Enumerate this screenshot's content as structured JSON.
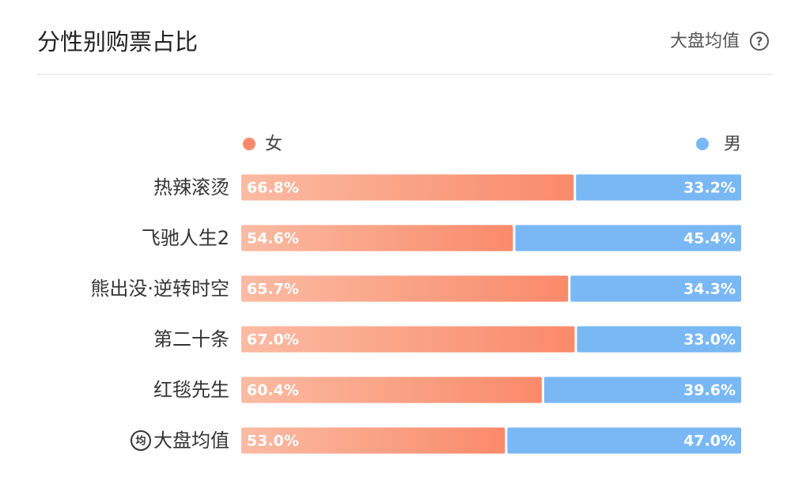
{
  "chart_data": {
    "type": "stacked_barh",
    "title": "分性别购票占比",
    "benchmark_label": "大盘均值",
    "benchmark_badge": "均",
    "categories": [
      "热辣滚烫",
      "飞驰人生2",
      "熊出没·逆转时空",
      "第二十条",
      "红毯先生",
      "大盘均值"
    ],
    "series": [
      {
        "name": "女",
        "color": "#fa8a6a",
        "values": [
          66.8,
          54.6,
          65.7,
          67.0,
          60.4,
          53.0
        ],
        "value_labels": [
          "66.8%",
          "54.6%",
          "65.7%",
          "67.0%",
          "60.4%",
          "53.0%"
        ]
      },
      {
        "name": "男",
        "color": "#7ab8f5",
        "values": [
          33.2,
          45.4,
          34.3,
          33.0,
          39.6,
          47.0
        ],
        "value_labels": [
          "33.2%",
          "45.4%",
          "34.3%",
          "33.0%",
          "39.6%",
          "47.0%"
        ]
      }
    ],
    "highlight_color": "#f2612b"
  }
}
